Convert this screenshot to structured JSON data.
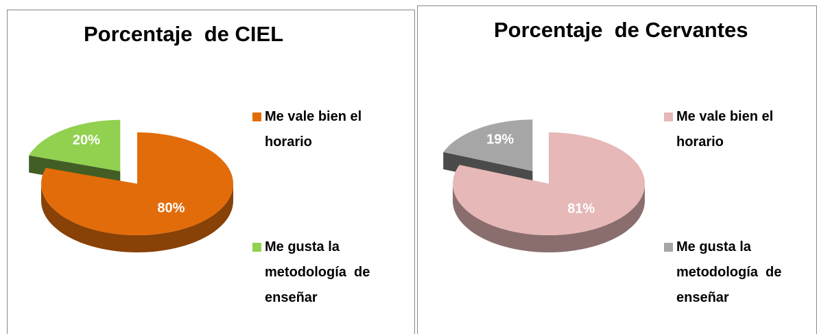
{
  "chart_data": [
    {
      "type": "pie",
      "title": "Porcentaje  de CIEL",
      "labels": [
        "Me vale bien el horario",
        "Me gusta la metodología  de enseñar"
      ],
      "values": [
        80,
        20
      ],
      "value_labels": [
        "80%",
        "20%"
      ],
      "colors": [
        "#e36c0a",
        "#92d050"
      ]
    },
    {
      "type": "pie",
      "title": "Porcentaje  de Cervantes",
      "labels": [
        "Me vale bien el horario",
        "Me gusta la metodología  de enseñar"
      ],
      "values": [
        81,
        19
      ],
      "value_labels": [
        "81%",
        "19%"
      ],
      "colors": [
        "#e6b8b7",
        "#a6a6a6"
      ]
    }
  ]
}
